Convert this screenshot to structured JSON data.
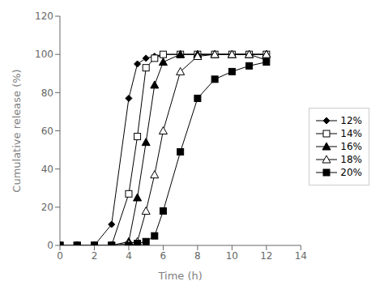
{
  "chart_data": {
    "type": "line",
    "xlabel": "Time (h)",
    "ylabel": "Cumulative release (%)",
    "x": [
      0,
      1,
      2,
      3,
      4,
      4.5,
      5,
      5.5,
      6,
      7,
      8,
      9,
      10,
      11,
      12
    ],
    "xlim": [
      0,
      14
    ],
    "ylim": [
      0,
      120
    ],
    "xticks": [
      0,
      2,
      4,
      6,
      8,
      10,
      12,
      14
    ],
    "yticks": [
      0,
      20,
      40,
      60,
      80,
      100,
      120
    ],
    "grid": false,
    "legend": "right",
    "series": [
      {
        "name": "12%",
        "color": "black",
        "marker": "diamond",
        "values": [
          0,
          0,
          0,
          11,
          77,
          95,
          98,
          99,
          100,
          100,
          100,
          100,
          100,
          100,
          97
        ]
      },
      {
        "name": "14%",
        "color": "black",
        "marker": "square-open",
        "values": [
          0,
          0,
          0,
          0,
          27,
          57,
          93,
          98,
          100,
          100,
          100,
          100,
          100,
          100,
          100
        ]
      },
      {
        "name": "16%",
        "color": "black",
        "marker": "triangle",
        "values": [
          0,
          0,
          0,
          0,
          2,
          25,
          54,
          84,
          96,
          100,
          100,
          100,
          100,
          100,
          100
        ]
      },
      {
        "name": "18%",
        "color": "black",
        "marker": "triangle-open",
        "values": [
          0,
          0,
          0,
          0,
          1,
          2,
          18,
          37,
          60,
          91,
          99,
          100,
          100,
          100,
          100
        ]
      },
      {
        "name": "20%",
        "color": "black",
        "marker": "square",
        "values": [
          0,
          0,
          0,
          0,
          0,
          1,
          2,
          5,
          18,
          49,
          77,
          87,
          91,
          94,
          96
        ]
      }
    ]
  }
}
